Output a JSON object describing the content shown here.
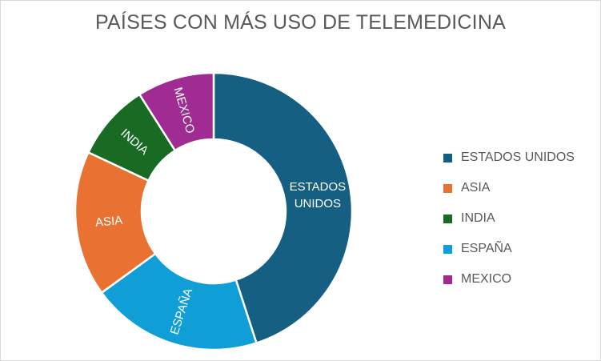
{
  "chart_data": {
    "type": "pie",
    "style": "donut",
    "title": "PAÍSES CON MÁS USO DE TELEMEDICINA",
    "categories": [
      "ESTADOS UNIDOS",
      "ASIA",
      "INDIA",
      "ESPAÑA",
      "MEXICO"
    ],
    "values": [
      45,
      17,
      9,
      20,
      9
    ],
    "slice_order_clockwise_from_top": [
      "ESTADOS UNIDOS",
      "ESPAÑA",
      "ASIA",
      "INDIA",
      "MEXICO"
    ],
    "slice_labels": {
      "ESTADOS UNIDOS": [
        "ESTADOS",
        "UNIDOS"
      ],
      "ASIA": [
        "ASIA"
      ],
      "INDIA": [
        "INDIA"
      ],
      "ESPAÑA": [
        "ESPAÑA"
      ],
      "MEXICO": [
        "MEXICO"
      ]
    },
    "colors": {
      "ESTADOS UNIDOS": "#156082",
      "ASIA": "#E97132",
      "INDIA": "#196B24",
      "ESPAÑA": "#0F9ED5",
      "MEXICO": "#A02B93"
    },
    "legend_position": "right",
    "grid": false
  }
}
